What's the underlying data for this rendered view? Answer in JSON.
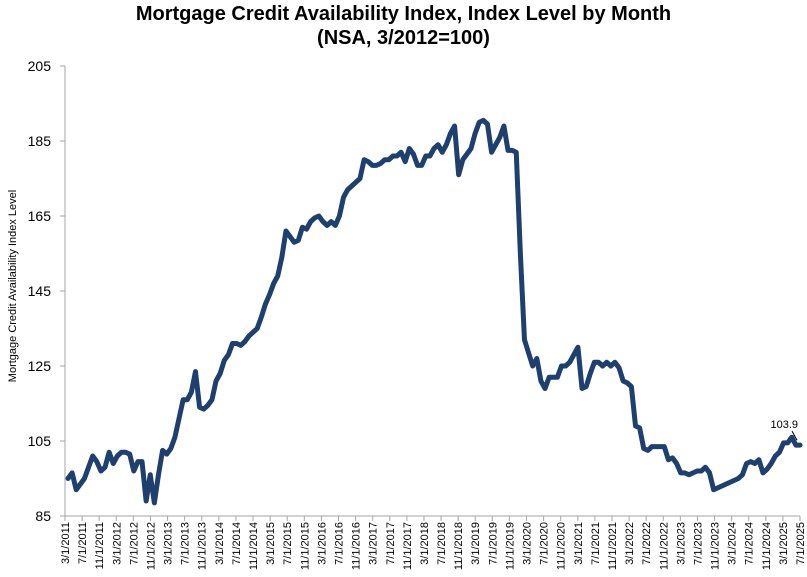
{
  "chart_data": {
    "type": "line",
    "title_line1": "Mortgage Credit Availability Index, Index Level by Month",
    "title_line2": "(NSA, 3/2012=100)",
    "ylabel": "Mortgage Credit Availability Index Level",
    "ylim": [
      85,
      205
    ],
    "yticks": [
      85,
      105,
      125,
      145,
      165,
      185,
      205
    ],
    "xticks": [
      "3/1/2011",
      "7/1/2011",
      "11/1/2011",
      "3/1/2012",
      "7/1/2012",
      "11/1/2012",
      "3/1/2013",
      "7/1/2013",
      "11/1/2013",
      "3/1/2014",
      "7/1/2014",
      "11/1/2014",
      "3/1/2015",
      "7/1/2015",
      "11/1/2015",
      "3/1/2016",
      "7/1/2016",
      "11/1/2016",
      "3/1/2017",
      "7/1/2017",
      "11/1/2017",
      "3/1/2018",
      "7/1/2018",
      "11/1/2018",
      "3/1/2019",
      "7/1/2019",
      "11/1/2019",
      "3/1/2020",
      "7/1/2020",
      "11/1/2020",
      "3/1/2021",
      "7/1/2021",
      "11/1/2021",
      "3/1/2022",
      "7/1/2022",
      "11/1/2022",
      "3/1/2023",
      "7/1/2023",
      "11/1/2023",
      "3/1/2024",
      "7/1/2024",
      "11/1/2024",
      "3/1/2025",
      "7/1/2025"
    ],
    "grid": false,
    "line_color": "#1f3f6e",
    "series": [
      {
        "x_start": "3/1/2011",
        "x_end": "7/1/2025",
        "values": [
          95,
          96.5,
          92,
          93.5,
          95,
          98,
          101,
          99.5,
          97,
          98,
          102,
          99,
          101,
          102,
          102,
          101.5,
          97,
          99.5,
          99.5,
          89,
          96,
          88.5,
          96,
          102.5,
          101.5,
          103,
          106,
          111,
          116,
          116,
          118,
          123.5,
          114,
          113.5,
          114.5,
          116,
          121,
          123,
          126.5,
          128,
          131,
          131,
          130.5,
          131.5,
          133,
          134,
          135,
          138,
          141.5,
          144,
          147,
          149,
          154,
          161,
          159.5,
          158,
          158.5,
          162,
          161.5,
          163.5,
          164.5,
          165,
          163.5,
          162.5,
          163.5,
          162.5,
          165,
          170,
          172,
          173,
          174,
          175,
          180,
          179.5,
          178.5,
          178.5,
          179,
          180,
          180,
          181,
          181,
          182,
          179.5,
          183,
          181.5,
          178.5,
          178.5,
          181,
          181,
          183,
          184,
          182,
          184,
          187,
          189,
          176,
          180,
          181.5,
          183,
          187,
          190,
          190.5,
          189.5,
          182,
          184,
          186,
          189,
          182.5,
          182.5,
          182,
          155,
          132,
          128.5,
          125,
          127,
          121,
          119,
          122,
          122,
          122,
          125,
          125,
          126,
          128,
          130,
          119,
          119.5,
          123,
          126,
          126,
          125,
          126,
          125,
          126,
          124.5,
          121,
          120.5,
          119.5,
          109,
          108.5,
          103,
          102.5,
          103.5,
          103.5,
          103.5,
          103.5,
          100,
          100.5,
          99,
          96.5,
          96.5,
          96,
          96.5,
          97,
          97,
          98,
          96.5,
          92,
          92.5,
          93,
          93.5,
          94,
          94.5,
          95,
          96,
          99,
          99.5,
          99,
          100,
          96.5,
          97.5,
          99,
          101,
          102,
          104.5,
          104.5,
          106,
          103.9,
          103.9
        ]
      }
    ],
    "annotations": [
      {
        "text": "103.9",
        "x": "7/1/2025",
        "y": 103.9
      }
    ]
  }
}
